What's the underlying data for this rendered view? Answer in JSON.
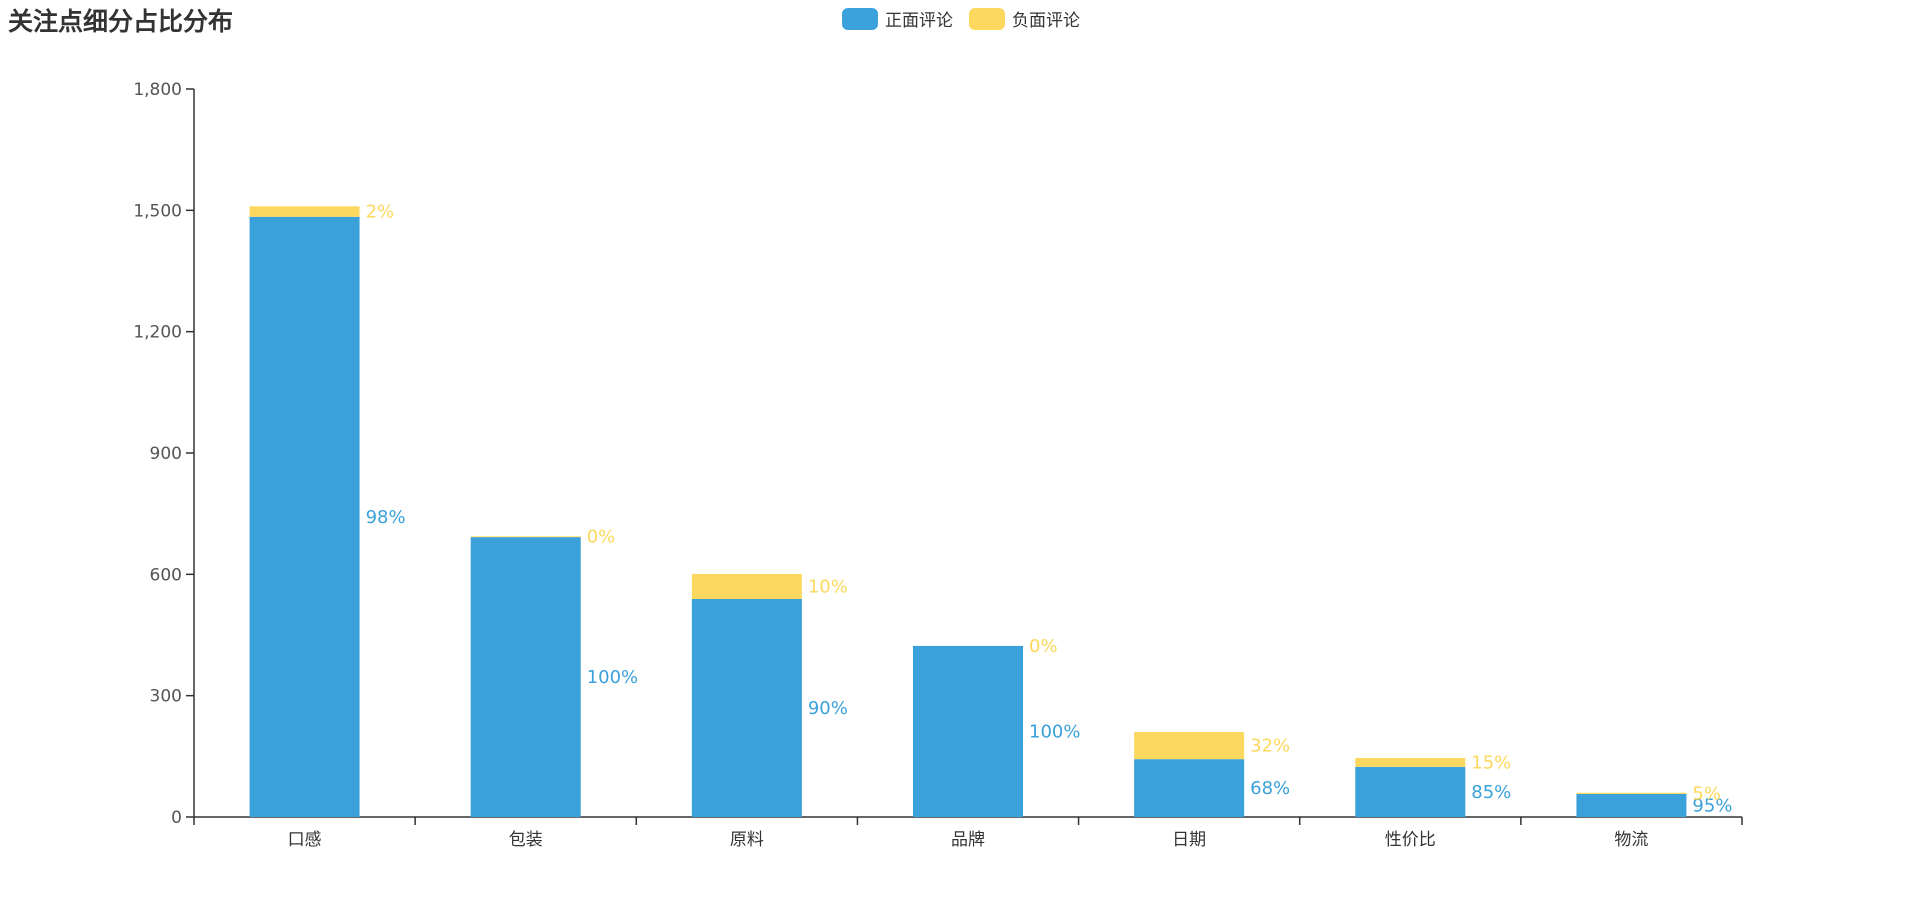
{
  "chart_data": {
    "type": "bar",
    "stacked": true,
    "title": "关注点细分占比分布",
    "categories": [
      "口感",
      "包装",
      "原料",
      "品牌",
      "日期",
      "性价比",
      "物流"
    ],
    "series": [
      {
        "name": "正面评论",
        "color": "#3BA1DA",
        "values": [
          1484,
          692,
          539,
          423,
          143,
          124,
          57
        ],
        "labels": [
          "98%",
          "100%",
          "90%",
          "100%",
          "68%",
          "85%",
          "95%"
        ]
      },
      {
        "name": "负面评论",
        "color": "#FDD85E",
        "values": [
          26,
          2,
          62,
          0,
          67,
          22,
          3
        ],
        "labels": [
          "2%",
          "0%",
          "10%",
          "0%",
          "32%",
          "15%",
          "5%"
        ]
      }
    ],
    "ylim": [
      0,
      1800
    ],
    "yticks": [
      0,
      300,
      600,
      900,
      1200,
      1500,
      1800
    ],
    "ytick_labels": [
      "0",
      "300",
      "600",
      "900",
      "1,200",
      "1,500",
      "1,800"
    ],
    "xlabel": "",
    "ylabel": "",
    "legend_position": "top-center",
    "grid": false
  }
}
